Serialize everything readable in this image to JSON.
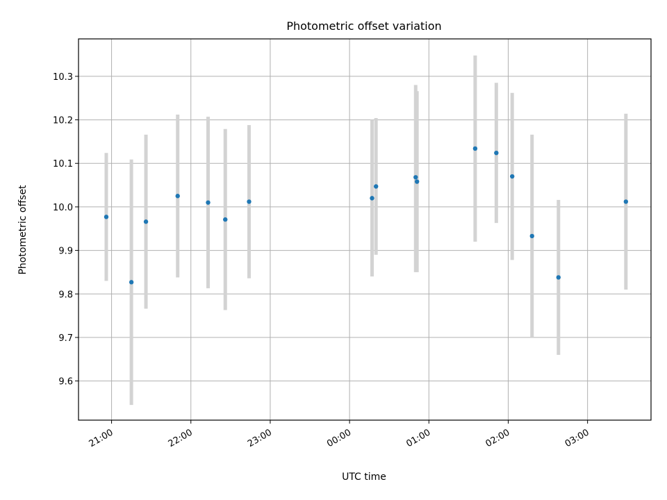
{
  "chart_data": {
    "type": "scatter",
    "title": "Photometric offset variation",
    "xlabel": "UTC time",
    "ylabel": "Photometric offset",
    "x_ticks": [
      "21:00",
      "22:00",
      "23:00",
      "00:00",
      "01:00",
      "02:00",
      "03:00"
    ],
    "y_ticks": [
      "9.6",
      "9.7",
      "9.8",
      "9.9",
      "10.0",
      "10.1",
      "10.2",
      "10.3"
    ],
    "xlim": [
      "20:35",
      "03:48"
    ],
    "ylim": [
      9.51,
      10.386
    ],
    "grid": true,
    "marker_color": "#1f77b4",
    "errorbar_color": "#d3d3d3",
    "points": [
      {
        "x": "20:56",
        "y": 9.977,
        "ylow": 9.83,
        "yhigh": 10.124
      },
      {
        "x": "21:15",
        "y": 9.827,
        "ylow": 9.545,
        "yhigh": 10.109
      },
      {
        "x": "21:26",
        "y": 9.966,
        "ylow": 9.766,
        "yhigh": 10.166
      },
      {
        "x": "21:50",
        "y": 10.025,
        "ylow": 9.838,
        "yhigh": 10.212
      },
      {
        "x": "22:13",
        "y": 10.01,
        "ylow": 9.813,
        "yhigh": 10.207
      },
      {
        "x": "22:26",
        "y": 9.971,
        "ylow": 9.763,
        "yhigh": 10.179
      },
      {
        "x": "22:44",
        "y": 10.012,
        "ylow": 9.836,
        "yhigh": 10.188
      },
      {
        "x": "00:17",
        "y": 10.02,
        "ylow": 9.84,
        "yhigh": 10.2
      },
      {
        "x": "00:20",
        "y": 10.047,
        "ylow": 9.89,
        "yhigh": 10.204
      },
      {
        "x": "00:50",
        "y": 10.068,
        "ylow": 9.85,
        "yhigh": 10.28
      },
      {
        "x": "00:51",
        "y": 10.058,
        "ylow": 9.85,
        "yhigh": 10.266
      },
      {
        "x": "01:35",
        "y": 10.134,
        "ylow": 9.92,
        "yhigh": 10.348
      },
      {
        "x": "01:51",
        "y": 10.124,
        "ylow": 9.963,
        "yhigh": 10.285
      },
      {
        "x": "02:03",
        "y": 10.07,
        "ylow": 9.878,
        "yhigh": 10.262
      },
      {
        "x": "02:18",
        "y": 9.933,
        "ylow": 9.7,
        "yhigh": 10.166
      },
      {
        "x": "02:38",
        "y": 9.838,
        "ylow": 9.66,
        "yhigh": 10.016
      },
      {
        "x": "03:29",
        "y": 10.012,
        "ylow": 9.81,
        "yhigh": 10.214
      }
    ]
  }
}
